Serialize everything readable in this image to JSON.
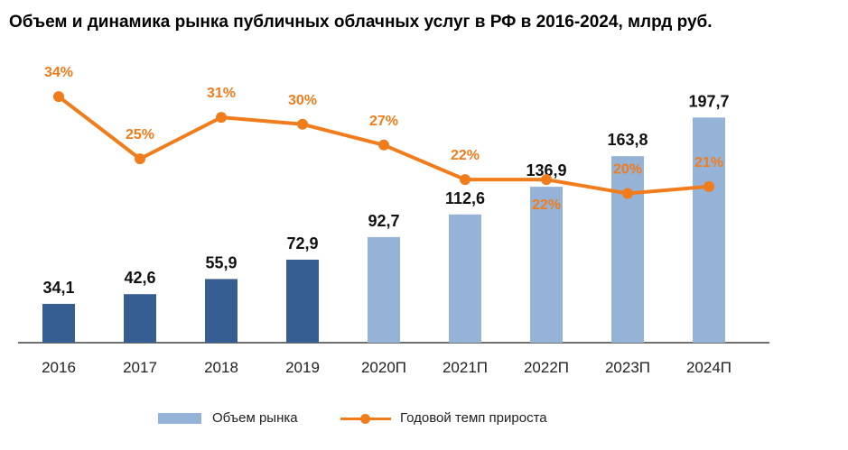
{
  "title": "Объем и динамика рынка публичных облачных услуг в РФ в 2016-2024, млрд руб.",
  "colors": {
    "bar_actual": "#375e92",
    "bar_forecast": "#95b3d7",
    "line": "#f07c1c",
    "axis": "#404040"
  },
  "legend": {
    "bar_label": "Объем рынка",
    "line_label": "Годовой темп прироста"
  },
  "chart_data": {
    "type": "bar",
    "title": "Объем и динамика рынка публичных облачных услуг в РФ в 2016-2024, млрд руб.",
    "categories": [
      "2016",
      "2017",
      "2018",
      "2019",
      "2020П",
      "2021П",
      "2022П",
      "2023П",
      "2024П"
    ],
    "series": [
      {
        "name": "Объем рынка",
        "type": "bar",
        "values": [
          34.1,
          42.6,
          55.9,
          72.9,
          92.7,
          112.6,
          136.9,
          163.8,
          197.7
        ],
        "labels": [
          "34,1",
          "42,6",
          "55,9",
          "72,9",
          "92,7",
          "112,6",
          "136,9",
          "163,8",
          "197,7"
        ],
        "forecast": [
          false,
          false,
          false,
          false,
          true,
          true,
          true,
          true,
          true
        ]
      },
      {
        "name": "Годовой темп прироста",
        "type": "line",
        "values": [
          34,
          25,
          31,
          30,
          27,
          22,
          22,
          20,
          21
        ],
        "labels": [
          "34%",
          "25%",
          "31%",
          "30%",
          "27%",
          "22%",
          "22%",
          "20%",
          "21%"
        ]
      }
    ],
    "bar_ylim": [
      0,
      210
    ],
    "line_ylim": [
      0,
      40
    ],
    "legend_position": "bottom",
    "grid": false
  }
}
